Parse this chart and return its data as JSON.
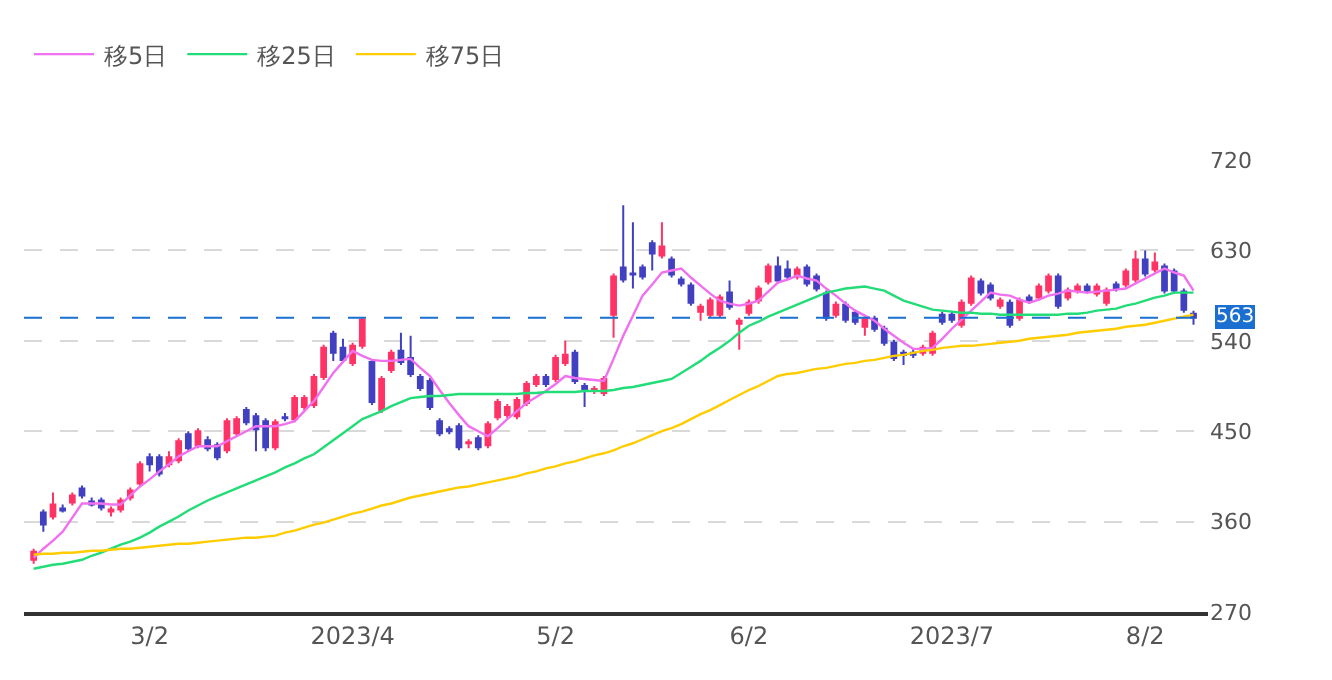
{
  "chart_data": {
    "type": "candlestick",
    "categories": [
      null,
      null,
      null,
      null,
      null,
      null,
      null,
      null,
      null,
      null,
      null,
      null,
      "3/2",
      null,
      null,
      null,
      null,
      null,
      null,
      null,
      null,
      null,
      null,
      null,
      null,
      null,
      null,
      null,
      null,
      null,
      null,
      null,
      null,
      "2023/4",
      null,
      null,
      null,
      null,
      null,
      null,
      null,
      null,
      null,
      null,
      null,
      null,
      null,
      null,
      null,
      null,
      null,
      null,
      null,
      null,
      "5/2",
      null,
      null,
      null,
      null,
      null,
      null,
      null,
      null,
      null,
      null,
      null,
      null,
      null,
      null,
      null,
      null,
      null,
      null,
      null,
      "6/2",
      null,
      null,
      null,
      null,
      null,
      null,
      null,
      null,
      null,
      null,
      null,
      null,
      null,
      null,
      null,
      null,
      null,
      null,
      null,
      null,
      "2023/7",
      null,
      null,
      null,
      null,
      null,
      null,
      null,
      null,
      null,
      null,
      null,
      null,
      null,
      null,
      null,
      null,
      null,
      null,
      null,
      "8/2",
      null,
      null,
      null,
      null,
      null
    ],
    "ohlc": [
      [
        322,
        333,
        318,
        330
      ],
      [
        369,
        372,
        350,
        357
      ],
      [
        365,
        389,
        362,
        377
      ],
      [
        373,
        377,
        369,
        371
      ],
      [
        379,
        389,
        376,
        386
      ],
      [
        393,
        396,
        383,
        386
      ],
      [
        380,
        384,
        375,
        377
      ],
      [
        381,
        384,
        371,
        374
      ],
      [
        370,
        375,
        365,
        372
      ],
      [
        372,
        384,
        369,
        381
      ],
      [
        384,
        394,
        381,
        391
      ],
      [
        398,
        420,
        395,
        417
      ],
      [
        424,
        428,
        410,
        417
      ],
      [
        424,
        427,
        405,
        408
      ],
      [
        417,
        430,
        414,
        424
      ],
      [
        421,
        443,
        418,
        440
      ],
      [
        447,
        450,
        430,
        433
      ],
      [
        436,
        453,
        433,
        450
      ],
      [
        441,
        445,
        430,
        433
      ],
      [
        436,
        439,
        421,
        424
      ],
      [
        431,
        463,
        428,
        460
      ],
      [
        448,
        465,
        445,
        462
      ],
      [
        471,
        474,
        456,
        459
      ],
      [
        465,
        468,
        430,
        452
      ],
      [
        460,
        463,
        430,
        434
      ],
      [
        434,
        462,
        431,
        459
      ],
      [
        464,
        468,
        460,
        463
      ],
      [
        462,
        486,
        459,
        483
      ],
      [
        474,
        486,
        471,
        483
      ],
      [
        476,
        507,
        473,
        504
      ],
      [
        504,
        536,
        501,
        533
      ],
      [
        547,
        550,
        520,
        528
      ],
      [
        533,
        542,
        518,
        521
      ],
      [
        518,
        538,
        515,
        535
      ],
      [
        535,
        563,
        532,
        561
      ],
      [
        519,
        522,
        476,
        479
      ],
      [
        471,
        505,
        468,
        502
      ],
      [
        511,
        531,
        508,
        528
      ],
      [
        530,
        548,
        516,
        519
      ],
      [
        523,
        545,
        504,
        507
      ],
      [
        504,
        507,
        490,
        493
      ],
      [
        500,
        503,
        471,
        474
      ],
      [
        460,
        463,
        445,
        448
      ],
      [
        452,
        455,
        447,
        450
      ],
      [
        455,
        458,
        431,
        434
      ],
      [
        438,
        442,
        433,
        439
      ],
      [
        443,
        446,
        431,
        434
      ],
      [
        436,
        460,
        433,
        457
      ],
      [
        464,
        482,
        461,
        479
      ],
      [
        466,
        477,
        463,
        474
      ],
      [
        465,
        484,
        462,
        481
      ],
      [
        478,
        500,
        475,
        497
      ],
      [
        497,
        507,
        494,
        504
      ],
      [
        504,
        507,
        494,
        497
      ],
      [
        502,
        526,
        499,
        523
      ],
      [
        518,
        540,
        515,
        526
      ],
      [
        528,
        531,
        497,
        500
      ],
      [
        495,
        498,
        474,
        492
      ],
      [
        490,
        495,
        487,
        492
      ],
      [
        488,
        505,
        485,
        502
      ],
      [
        566,
        607,
        543,
        604
      ],
      [
        613,
        675,
        598,
        601
      ],
      [
        607,
        658,
        592,
        606
      ],
      [
        613,
        616,
        601,
        604
      ],
      [
        637,
        640,
        610,
        627
      ],
      [
        625,
        658,
        622,
        634
      ],
      [
        621,
        624,
        603,
        606
      ],
      [
        601,
        604,
        594,
        597
      ],
      [
        595,
        598,
        575,
        578
      ],
      [
        569,
        577,
        560,
        574
      ],
      [
        566,
        583,
        563,
        580
      ],
      [
        566,
        586,
        563,
        583
      ],
      [
        588,
        600,
        571,
        574
      ],
      [
        557,
        563,
        531,
        560
      ],
      [
        568,
        581,
        565,
        578
      ],
      [
        580,
        595,
        577,
        592
      ],
      [
        599,
        617,
        596,
        614
      ],
      [
        614,
        624,
        597,
        600
      ],
      [
        611,
        620,
        601,
        604
      ],
      [
        604,
        614,
        601,
        611
      ],
      [
        613,
        616,
        594,
        597
      ],
      [
        604,
        607,
        589,
        592
      ],
      [
        587,
        590,
        560,
        563
      ],
      [
        566,
        579,
        563,
        576
      ],
      [
        576,
        579,
        558,
        561
      ],
      [
        568,
        571,
        556,
        559
      ],
      [
        554,
        565,
        545,
        562
      ],
      [
        562,
        565,
        549,
        552
      ],
      [
        552,
        555,
        535,
        538
      ],
      [
        538,
        541,
        520,
        523
      ],
      [
        528,
        531,
        516,
        526
      ],
      [
        528,
        532,
        523,
        526
      ],
      [
        528,
        536,
        525,
        533
      ],
      [
        528,
        550,
        525,
        547
      ],
      [
        566,
        569,
        556,
        559
      ],
      [
        566,
        569,
        558,
        561
      ],
      [
        556,
        581,
        553,
        578
      ],
      [
        578,
        605,
        575,
        602
      ],
      [
        599,
        602,
        585,
        588
      ],
      [
        595,
        598,
        580,
        583
      ],
      [
        575,
        583,
        572,
        580
      ],
      [
        578,
        581,
        553,
        556
      ],
      [
        563,
        583,
        560,
        580
      ],
      [
        583,
        586,
        577,
        580
      ],
      [
        583,
        597,
        580,
        594
      ],
      [
        590,
        607,
        587,
        604
      ],
      [
        604,
        607,
        572,
        575
      ],
      [
        583,
        593,
        580,
        590
      ],
      [
        590,
        597,
        587,
        594
      ],
      [
        594,
        597,
        587,
        590
      ],
      [
        587,
        597,
        584,
        594
      ],
      [
        578,
        593,
        575,
        590
      ],
      [
        596,
        599,
        589,
        592
      ],
      [
        596,
        612,
        593,
        609
      ],
      [
        601,
        630,
        598,
        621
      ],
      [
        621,
        630,
        604,
        607
      ],
      [
        611,
        628,
        608,
        618
      ],
      [
        614,
        617,
        587,
        590
      ],
      [
        609,
        612,
        587,
        590
      ],
      [
        589,
        592,
        568,
        571
      ],
      [
        567,
        570,
        556,
        563
      ]
    ],
    "colors": [
      "#ff3366",
      "#4040c0",
      "#ff3366",
      "#4040c0",
      "#ff3366",
      "#4040c0",
      "#4040c0",
      "#4040c0",
      "#ff3366",
      "#ff3366",
      "#ff3366",
      "#ff3366",
      "#4040c0",
      "#4040c0",
      "#ff3366",
      "#ff3366",
      "#4040c0",
      "#ff3366",
      "#4040c0",
      "#4040c0",
      "#ff3366",
      "#ff3366",
      "#4040c0",
      "#4040c0",
      "#4040c0",
      "#ff3366",
      "#4040c0",
      "#ff3366",
      "#ff3366",
      "#ff3366",
      "#ff3366",
      "#4040c0",
      "#4040c0",
      "#ff3366",
      "#ff3366",
      "#4040c0",
      "#ff3366",
      "#ff3366",
      "#4040c0",
      "#4040c0",
      "#4040c0",
      "#4040c0",
      "#4040c0",
      "#4040c0",
      "#4040c0",
      "#ff3366",
      "#4040c0",
      "#ff3366",
      "#ff3366",
      "#ff3366",
      "#ff3366",
      "#ff3366",
      "#ff3366",
      "#4040c0",
      "#ff3366",
      "#ff3366",
      "#4040c0",
      "#4040c0",
      "#ff3366",
      "#ff3366",
      "#ff3366",
      "#4040c0",
      "#4040c0",
      "#4040c0",
      "#4040c0",
      "#ff3366",
      "#4040c0",
      "#4040c0",
      "#4040c0",
      "#ff3366",
      "#ff3366",
      "#ff3366",
      "#4040c0",
      "#ff3366",
      "#ff3366",
      "#ff3366",
      "#ff3366",
      "#4040c0",
      "#4040c0",
      "#ff3366",
      "#4040c0",
      "#4040c0",
      "#4040c0",
      "#ff3366",
      "#4040c0",
      "#4040c0",
      "#ff3366",
      "#4040c0",
      "#4040c0",
      "#4040c0",
      "#4040c0",
      "#4040c0",
      "#ff3366",
      "#ff3366",
      "#4040c0",
      "#4040c0",
      "#ff3366",
      "#ff3366",
      "#4040c0",
      "#4040c0",
      "#ff3366",
      "#4040c0",
      "#ff3366",
      "#4040c0",
      "#ff3366",
      "#ff3366",
      "#4040c0",
      "#ff3366",
      "#ff3366",
      "#4040c0",
      "#ff3366",
      "#ff3366",
      "#4040c0",
      "#ff3366",
      "#ff3366",
      "#4040c0",
      "#ff3366",
      "#4040c0",
      "#4040c0",
      "#4040c0",
      "#4040c0"
    ],
    "series": [
      {
        "type": "line",
        "name": "移5日",
        "color": "#f070f0",
        "values": [
          324,
          333,
          341,
          350,
          364,
          378,
          378,
          378,
          377,
          377,
          386,
          395,
          402,
          410,
          417,
          425,
          430,
          435,
          435,
          435,
          440,
          445,
          450,
          455,
          455,
          455,
          457,
          460,
          470,
          480,
          494,
          508,
          519,
          530,
          525,
          521,
          520,
          520,
          521,
          522,
          513,
          505,
          491,
          478,
          466,
          455,
          450,
          445,
          453,
          462,
          470,
          478,
          484,
          490,
          497,
          505,
          503,
          502,
          501,
          500,
          522,
          545,
          565,
          585,
          596,
          608,
          610,
          612,
          603,
          595,
          587,
          580,
          577,
          575,
          577,
          580,
          589,
          598,
          601,
          605,
          602,
          600,
          592,
          585,
          577,
          570,
          565,
          560,
          552,
          545,
          538,
          532,
          532,
          533,
          542,
          552,
          561,
          570,
          579,
          588,
          586,
          585,
          581,
          578,
          581,
          585,
          587,
          590,
          589,
          588,
          589,
          590,
          591,
          592,
          597,
          602,
          607,
          612,
          608,
          605,
          590
        ]
      },
      {
        "type": "line",
        "name": "移25日",
        "color": "#22dd77",
        "values": [
          313,
          315,
          317,
          318,
          320,
          322,
          326,
          329,
          333,
          337,
          340,
          344,
          349,
          355,
          360,
          365,
          371,
          376,
          381,
          385,
          389,
          393,
          397,
          401,
          405,
          409,
          414,
          418,
          423,
          427,
          434,
          441,
          448,
          455,
          462,
          466,
          470,
          475,
          479,
          483,
          484,
          485,
          485,
          486,
          487,
          487,
          487,
          487,
          487,
          487,
          487,
          488,
          488,
          489,
          489,
          489,
          489,
          490,
          490,
          490,
          491,
          493,
          494,
          496,
          498,
          500,
          502,
          508,
          514,
          520,
          527,
          533,
          540,
          548,
          555,
          559,
          564,
          568,
          572,
          576,
          580,
          584,
          588,
          590,
          592,
          593,
          594,
          592,
          590,
          585,
          580,
          577,
          574,
          571,
          570,
          569,
          568,
          568,
          567,
          567,
          566,
          566,
          566,
          566,
          566,
          566,
          566,
          567,
          567,
          568,
          570,
          571,
          572,
          575,
          577,
          580,
          583,
          585,
          588,
          588,
          588
        ]
      },
      {
        "type": "line",
        "name": "移75日",
        "color": "#ffcc00",
        "values": [
          327,
          328,
          328,
          329,
          329,
          330,
          331,
          331,
          332,
          333,
          333,
          334,
          335,
          336,
          337,
          338,
          338,
          339,
          340,
          341,
          342,
          343,
          344,
          344,
          345,
          346,
          349,
          351,
          354,
          357,
          359,
          362,
          365,
          368,
          370,
          373,
          376,
          378,
          381,
          384,
          386,
          388,
          390,
          392,
          394,
          395,
          397,
          399,
          401,
          403,
          405,
          408,
          410,
          413,
          415,
          418,
          420,
          423,
          426,
          428,
          431,
          435,
          438,
          442,
          446,
          450,
          453,
          457,
          462,
          467,
          471,
          476,
          481,
          486,
          491,
          495,
          500,
          505,
          507,
          508,
          510,
          512,
          513,
          515,
          517,
          518,
          520,
          521,
          523,
          525,
          526,
          528,
          530,
          531,
          533,
          534,
          535,
          535,
          536,
          537,
          538,
          539,
          540,
          542,
          543,
          544,
          545,
          546,
          548,
          549,
          550,
          551,
          552,
          554,
          555,
          556,
          558,
          560,
          562,
          564,
          566
        ]
      }
    ],
    "ylim": [
      270,
      720
    ],
    "yticks": [
      270,
      360,
      450,
      540,
      630,
      720
    ],
    "grid": "y",
    "legend": "top left",
    "ref_lines": [
      {
        "axis": "y",
        "value": 563,
        "label": "563",
        "color": "#1a6fd0",
        "line_style": "dashed"
      }
    ]
  }
}
